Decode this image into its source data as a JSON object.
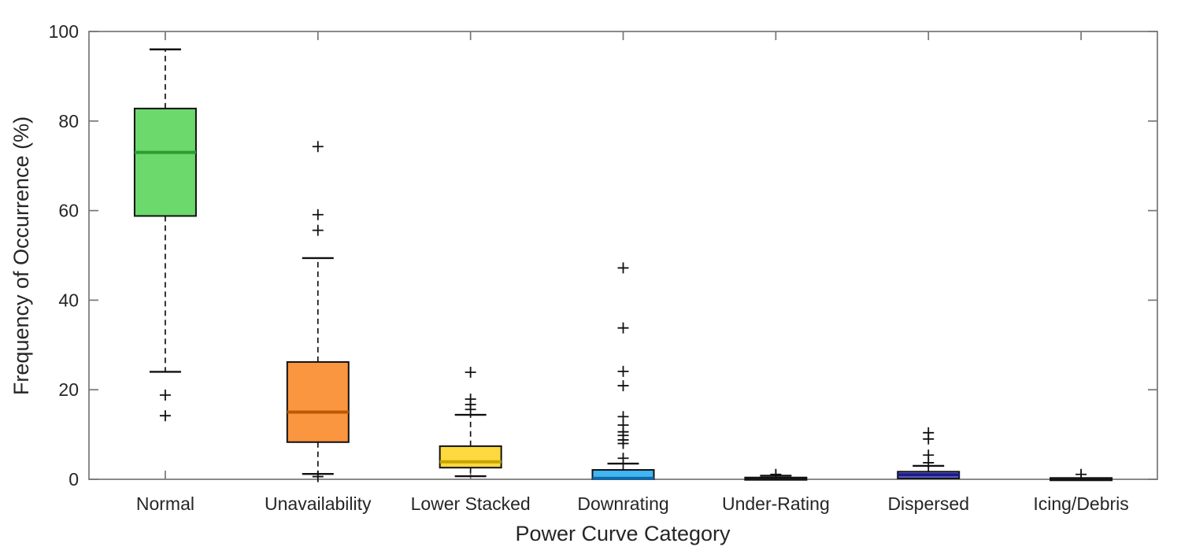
{
  "figure": {
    "background": "#ffffff",
    "text_color": "#262626",
    "axis_color": "#767676"
  },
  "chart_data": {
    "type": "box",
    "title": "",
    "xlabel": "Power Curve Category",
    "ylabel": "Frequency of Occurrence (%)",
    "ylim": [
      0,
      100
    ],
    "yticks": [
      0,
      20,
      40,
      60,
      80,
      100
    ],
    "grid": false,
    "legend": "none",
    "box_edge_color": "#111111",
    "whisker_style": "dashed-black",
    "outlier_marker": "plus",
    "categories": [
      "Normal",
      "Unavailability",
      "Lower Stacked",
      "Downrating",
      "Under-Rating",
      "Dispersed",
      "Icing/Debris"
    ],
    "boxes": [
      {
        "label": "Normal",
        "fill": "#6BD96B",
        "median_color": "#2E9C2E",
        "whisker_low": 24,
        "q1": 58.8,
        "median": 73,
        "q3": 82.8,
        "whisker_high": 96,
        "outliers": [
          18.8,
          14.2
        ]
      },
      {
        "label": "Unavailability",
        "fill": "#FA9540",
        "median_color": "#BC5A00",
        "whisker_low": 1.2,
        "q1": 8.3,
        "median": 15,
        "q3": 26.2,
        "whisker_high": 49.4,
        "outliers": [
          74.3,
          59.1,
          55.6,
          0.6
        ]
      },
      {
        "label": "Lower Stacked",
        "fill": "#FDD93F",
        "median_color": "#C7A400",
        "whisker_low": 0.7,
        "q1": 2.6,
        "median": 3.9,
        "q3": 7.4,
        "whisker_high": 14.4,
        "outliers": [
          23.9,
          17.9,
          16.7,
          15.6
        ]
      },
      {
        "label": "Downrating",
        "fill": "#41B6F2",
        "median_color": "#1168A8",
        "whisker_low": 0,
        "q1": 0.05,
        "median": 0.2,
        "q3": 2.1,
        "whisker_high": 3.5,
        "outliers": [
          47.2,
          33.8,
          24.1,
          20.9,
          14.0,
          12.1,
          10.6,
          9.8,
          8.8,
          8.0,
          4.7
        ]
      },
      {
        "label": "Under-Rating",
        "fill": "#1A1A1A",
        "median_color": "#000000",
        "whisker_low": 0,
        "q1": 0,
        "median": 0.2,
        "q3": 0.4,
        "whisker_high": 0.8,
        "outliers": [
          1.1
        ]
      },
      {
        "label": "Dispersed",
        "fill": "#6A6AD4",
        "median_color": "#1A1A8C",
        "whisker_low": 0,
        "q1": 0.2,
        "median": 1.0,
        "q3": 1.7,
        "whisker_high": 3.0,
        "outliers": [
          10.4,
          9.0,
          5.4,
          3.7
        ]
      },
      {
        "label": "Icing/Debris",
        "fill": "#1A1A1A",
        "median_color": "#000000",
        "whisker_low": 0,
        "q1": 0,
        "median": 0.1,
        "q3": 0.3,
        "whisker_high": 0.3,
        "outliers": [
          1.1
        ]
      }
    ]
  }
}
